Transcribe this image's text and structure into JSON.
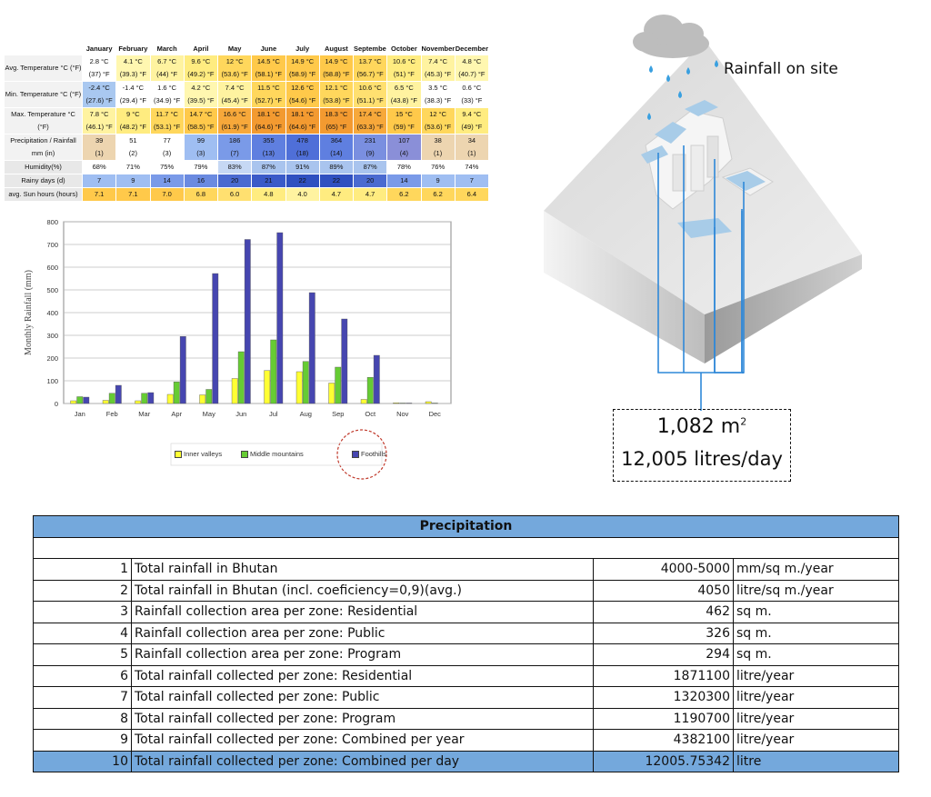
{
  "climate_table": {
    "months": [
      "January",
      "February",
      "March",
      "April",
      "May",
      "June",
      "July",
      "August",
      "September",
      "October",
      "November",
      "December"
    ],
    "rows": [
      {
        "label": "Avg. Temperature °C (°F)",
        "values": [
          "2.8 °C",
          "4.1 °C",
          "6.7 °C",
          "9.6 °C",
          "12 °C",
          "14.5 °C",
          "14.9 °C",
          "14.9 °C",
          "13.7 °C",
          "10.6 °C",
          "7.4 °C",
          "4.8 °C"
        ],
        "values2": [
          "(37) °F",
          "(39.3) °F",
          "(44) °F",
          "(49.2) °F",
          "(53.6) °F",
          "(58.1) °F",
          "(58.9) °F",
          "(58.8) °F",
          "(56.7) °F",
          "(51) °F",
          "(45.3) °F",
          "(40.7) °F"
        ],
        "colors": [
          "#ffffff",
          "#fff7b0",
          "#fff3a0",
          "#ffec80",
          "#ffd75c",
          "#ffc94a",
          "#ffc94a",
          "#ffc94a",
          "#ffd75c",
          "#ffec80",
          "#fff3a0",
          "#fff7b0"
        ]
      },
      {
        "label": "Min. Temperature °C (°F)",
        "values": [
          "-2.4 °C",
          "-1.4 °C",
          "1.6 °C",
          "4.2 °C",
          "7.4 °C",
          "11.5 °C",
          "12.6 °C",
          "12.1 °C",
          "10.6 °C",
          "6.5 °C",
          "3.5 °C",
          "0.6 °C"
        ],
        "values2": [
          "(27.6) °F",
          "(29.4) °F",
          "(34.9) °F",
          "(39.5) °F",
          "(45.4) °F",
          "(52.7) °F",
          "(54.6) °F",
          "(53.8) °F",
          "(51.1) °F",
          "(43.8) °F",
          "(38.3) °F",
          "(33) °F"
        ],
        "colors": [
          "#a9c8f0",
          "#ffffff",
          "#ffffff",
          "#fff7b0",
          "#fff3a0",
          "#ffd75c",
          "#ffc94a",
          "#ffd75c",
          "#ffe070",
          "#fff3a0",
          "#ffffff",
          "#ffffff"
        ]
      },
      {
        "label": "Max. Temperature °C (°F)",
        "values": [
          "7.8 °C",
          "9 °C",
          "11.7 °C",
          "14.7 °C",
          "16.6 °C",
          "18.1 °C",
          "18.1 °C",
          "18.3 °C",
          "17.4 °C",
          "15 °C",
          "12 °C",
          "9.4 °C"
        ],
        "values2": [
          "(46.1) °F",
          "(48.2) °F",
          "(53.1) °F",
          "(58.5) °F",
          "(61.9) °F",
          "(64.6) °F",
          "(64.6) °F",
          "(65) °F",
          "(63.3) °F",
          "(59) °F",
          "(53.6) °F",
          "(49) °F"
        ],
        "colors": [
          "#fff3a0",
          "#ffec80",
          "#ffd75c",
          "#ffc94a",
          "#f7a83a",
          "#f39a30",
          "#f39a30",
          "#f39a30",
          "#f7a83a",
          "#ffc94a",
          "#ffd75c",
          "#ffec80"
        ]
      },
      {
        "label": "Precipitation / Rainfall mm (in)",
        "values": [
          "39",
          "51",
          "77",
          "99",
          "186",
          "355",
          "478",
          "364",
          "231",
          "107",
          "38",
          "34"
        ],
        "values2": [
          "(1)",
          "(2)",
          "(3)",
          "(3)",
          "(7)",
          "(13)",
          "(18)",
          "(14)",
          "(9)",
          "(4)",
          "(1)",
          "(1)"
        ],
        "colors": [
          "#edd5b0",
          "#ffffff",
          "#ffffff",
          "#9fbef2",
          "#7a9ae8",
          "#5f7fe0",
          "#4f6fd8",
          "#5f7fe0",
          "#7a8fe0",
          "#8a8fd8",
          "#edd5b0",
          "#edd5b0"
        ]
      },
      {
        "label": "Humidity(%)",
        "values": [
          "68%",
          "71%",
          "75%",
          "79%",
          "83%",
          "87%",
          "91%",
          "89%",
          "87%",
          "78%",
          "76%",
          "74%"
        ],
        "values2": [],
        "colors": [
          "#ffffff",
          "#ffffff",
          "#ffffff",
          "#ffffff",
          "#c6d8f4",
          "#a9c4ee",
          "#a9c4ee",
          "#a9c4ee",
          "#a9c4ee",
          "#ffffff",
          "#ffffff",
          "#ffffff"
        ]
      },
      {
        "label": "Rainy days (d)",
        "values": [
          "7",
          "9",
          "14",
          "16",
          "20",
          "21",
          "22",
          "22",
          "20",
          "14",
          "9",
          "7"
        ],
        "values2": [],
        "colors": [
          "#9fbef2",
          "#9fbef2",
          "#7a9ae8",
          "#6a8ae0",
          "#4a6ad0",
          "#3a5ac8",
          "#2f50c0",
          "#2f50c0",
          "#4a6ad0",
          "#7a9ae8",
          "#9fbef2",
          "#9fbef2"
        ]
      },
      {
        "label": "avg. Sun hours (hours)",
        "values": [
          "7.1",
          "7.1",
          "7.0",
          "6.8",
          "6.0",
          "4.8",
          "4.0",
          "4.7",
          "4.7",
          "6.2",
          "6.2",
          "6.4"
        ],
        "values2": [],
        "colors": [
          "#ffc94a",
          "#ffc94a",
          "#ffc94a",
          "#ffd75c",
          "#ffe070",
          "#ffec80",
          "#fff3a0",
          "#ffec80",
          "#ffec80",
          "#ffd75c",
          "#ffd75c",
          "#ffd75c"
        ]
      }
    ]
  },
  "chart_data": {
    "type": "bar",
    "categories": [
      "Jan",
      "Feb",
      "Mar",
      "Apr",
      "May",
      "Jun",
      "Jul",
      "Aug",
      "Sep",
      "Oct",
      "Nov",
      "Dec"
    ],
    "series": [
      {
        "name": "Inner valleys",
        "color": "#ffff33",
        "values": [
          12,
          14,
          12,
          40,
          38,
          110,
          145,
          140,
          90,
          18,
          3,
          8
        ]
      },
      {
        "name": "Middle mountains",
        "color": "#66cc33",
        "values": [
          30,
          45,
          45,
          95,
          62,
          228,
          280,
          185,
          160,
          115,
          2,
          2
        ]
      },
      {
        "name": "Foothills",
        "color": "#4646b0",
        "values": [
          28,
          80,
          48,
          295,
          572,
          722,
          752,
          488,
          372,
          212,
          2,
          0
        ]
      }
    ],
    "ylabel": "Monthly Rainfall (mm)",
    "ylim": [
      0,
      800
    ],
    "yticks": [
      0,
      100,
      200,
      300,
      400,
      500,
      600,
      700,
      800
    ],
    "grid": true,
    "legend": "bottom"
  },
  "site": {
    "rain_label": "Rainfall on site",
    "area": "1,082 m",
    "area_sup": "2",
    "litres": "12,005 litres/day"
  },
  "precip_table": {
    "title": "Precipitation",
    "rows": [
      {
        "n": "1",
        "desc": "Total rainfall in Bhutan",
        "value": "4000-5000",
        "unit": "mm/sq m./year"
      },
      {
        "n": "2",
        "desc": "Total rainfall in Bhutan (incl. coeficiency=0,9)(avg.)",
        "value": "4050",
        "unit": "litre/sq m./year"
      },
      {
        "n": "3",
        "desc": "Rainfall collection area per zone: Residential",
        "value": "462",
        "unit": "sq m."
      },
      {
        "n": "4",
        "desc": "Rainfall collection area per zone: Public",
        "value": "326",
        "unit": "sq m."
      },
      {
        "n": "5",
        "desc": "Rainfall collection area per zone: Program",
        "value": "294",
        "unit": "sq m."
      },
      {
        "n": "6",
        "desc": "Total rainfall collected per zone: Residential",
        "value": "1871100",
        "unit": "litre/year"
      },
      {
        "n": "7",
        "desc": "Total rainfall collected per zone: Public",
        "value": "1320300",
        "unit": "litre/year"
      },
      {
        "n": "8",
        "desc": "Total rainfall collected per zone: Program",
        "value": "1190700",
        "unit": "litre/year"
      },
      {
        "n": "9",
        "desc": "Total rainfall collected per zone: Combined per year",
        "value": "4382100",
        "unit": "litre/year"
      },
      {
        "n": "10",
        "desc": "Total rainfall collected per zone: Combined per day",
        "value": "12005.75342",
        "unit": "litre"
      }
    ]
  }
}
